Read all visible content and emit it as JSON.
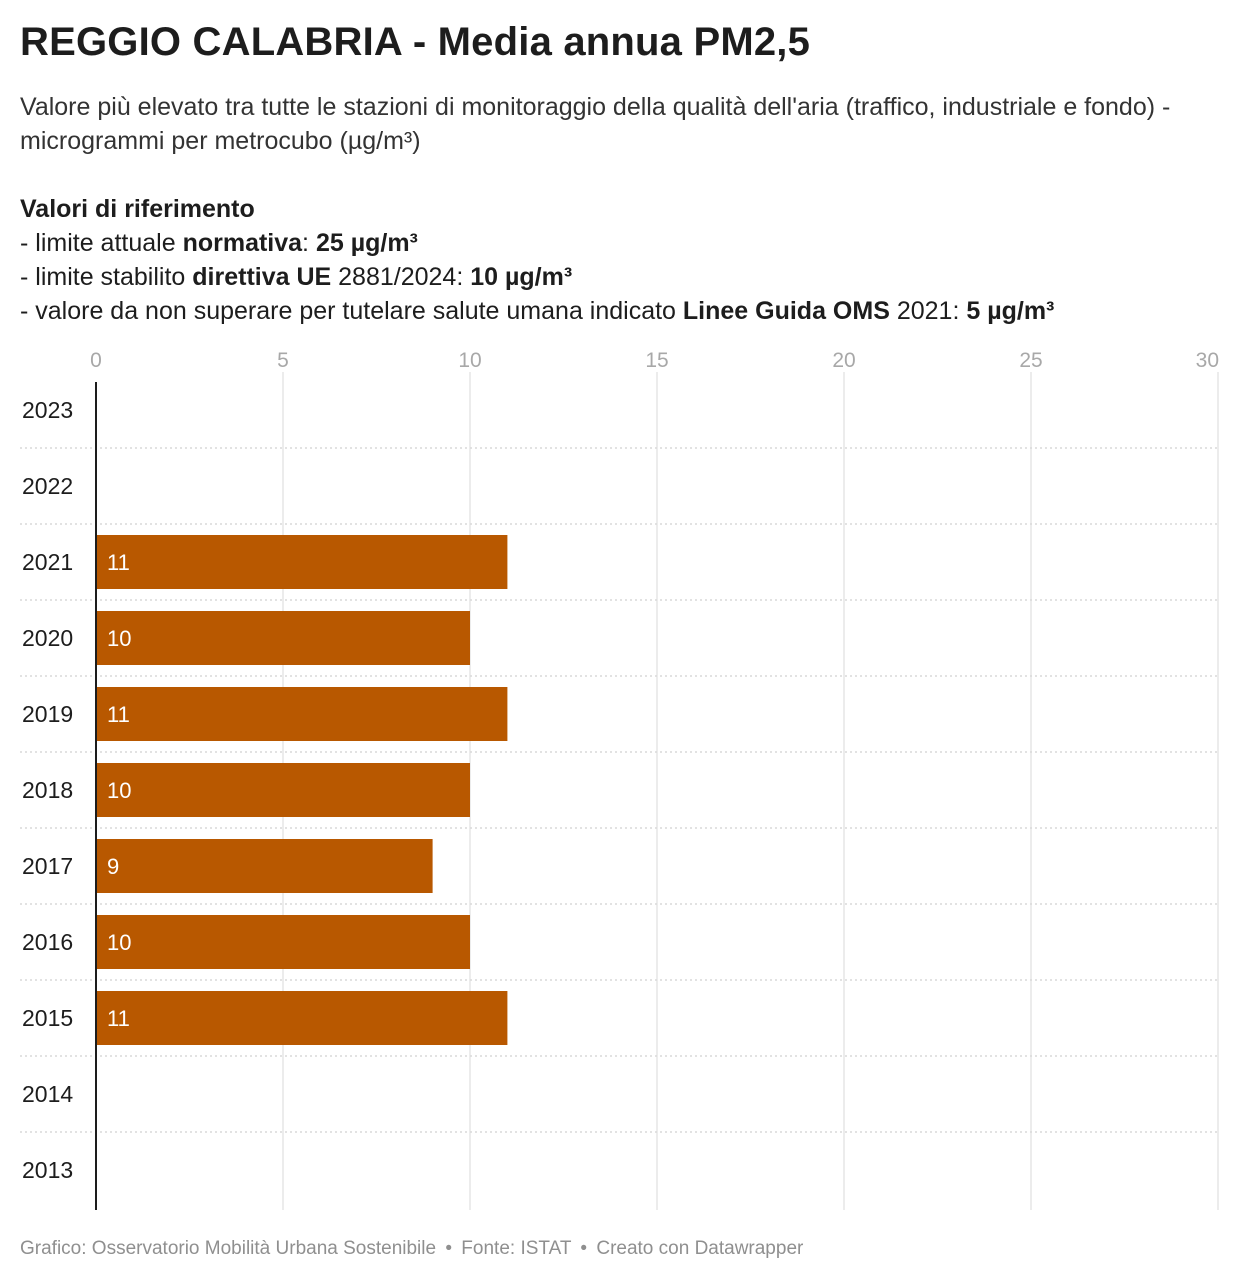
{
  "title": "REGGIO CALABRIA - Media annua PM2,5",
  "subtitle": "Valore più elevato tra tutte le stazioni di monitoraggio della qualità dell'aria (traffico, industriale e fondo) - microgrammi per metrocubo (µg/m³)",
  "references": {
    "heading": "Valori di riferimento",
    "line1": {
      "prefix": "- limite attuale ",
      "bold1": "normativa",
      "mid": ": ",
      "bold2": "25 µg/m³"
    },
    "line2": {
      "prefix": "- limite stabilito ",
      "bold1": "direttiva UE",
      "mid": " 2881/2024: ",
      "bold2": "10 µg/m³"
    },
    "line3": {
      "prefix": "- valore da non superare per tutelare salute umana indicato ",
      "bold1": "Linee Guida OMS",
      "mid": " 2021: ",
      "bold2": "5 µg/m³"
    }
  },
  "footer": {
    "chart_by": "Grafico: Osservatorio Mobilità Urbana Sostenibile",
    "source": "Fonte: ISTAT",
    "created": "Creato con Datawrapper",
    "separator": "•"
  },
  "colors": {
    "bar": "#b85800",
    "bar_label": "#ffffff",
    "grid": "#d9d9d9",
    "axis": "#1d1d1d",
    "tick_label": "#a8a8a8"
  },
  "chart_data": {
    "type": "bar",
    "orientation": "horizontal",
    "categories": [
      "2023",
      "2022",
      "2021",
      "2020",
      "2019",
      "2018",
      "2017",
      "2016",
      "2015",
      "2014",
      "2013"
    ],
    "values": [
      null,
      null,
      11,
      10,
      11,
      10,
      9,
      10,
      11,
      null,
      null
    ],
    "xlim": [
      0,
      30
    ],
    "xticks": [
      0,
      5,
      10,
      15,
      20,
      25,
      30
    ],
    "grid": true,
    "legend": "none",
    "xlabel": "",
    "ylabel": ""
  }
}
